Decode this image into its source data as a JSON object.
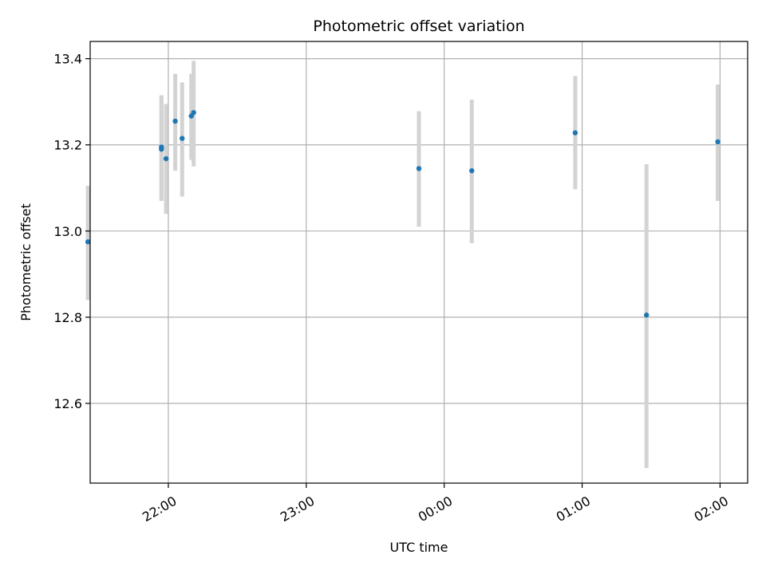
{
  "chart_data": {
    "type": "scatter",
    "title": "Photometric offset variation",
    "xlabel": "UTC time",
    "ylabel": "Photometric offset",
    "x_axis": {
      "kind": "time",
      "tick_labels": [
        "22:00",
        "23:00",
        "00:00",
        "01:00",
        "02:00"
      ],
      "tick_times": [
        "22:00",
        "23:00",
        "00:00",
        "01:00",
        "02:00"
      ],
      "range": [
        "21:26",
        "02:12"
      ]
    },
    "y_axis": {
      "tick_labels": [
        "12.6",
        "12.8",
        "13.0",
        "13.2",
        "13.4"
      ],
      "ticks": [
        12.6,
        12.8,
        13.0,
        13.2,
        13.4
      ],
      "range": [
        12.415,
        13.44
      ]
    },
    "grid": true,
    "colors": {
      "point": "#1f77b4",
      "errorbar": "#d3d3d3",
      "grid": "#b0b0b0"
    },
    "points": [
      {
        "x": "21:25",
        "y": 12.975,
        "lo": 12.84,
        "hi": 13.105
      },
      {
        "x": "21:57",
        "y": 13.195,
        "lo": 13.075,
        "hi": 13.315
      },
      {
        "x": "21:57",
        "y": 13.19,
        "lo": 13.07,
        "hi": 13.31
      },
      {
        "x": "21:59",
        "y": 13.168,
        "lo": 13.04,
        "hi": 13.295
      },
      {
        "x": "22:03",
        "y": 13.255,
        "lo": 13.14,
        "hi": 13.365
      },
      {
        "x": "22:06",
        "y": 13.215,
        "lo": 13.08,
        "hi": 13.345
      },
      {
        "x": "22:10",
        "y": 13.267,
        "lo": 13.165,
        "hi": 13.365
      },
      {
        "x": "22:11",
        "y": 13.275,
        "lo": 13.15,
        "hi": 13.395
      },
      {
        "x": "23:49",
        "y": 13.145,
        "lo": 13.01,
        "hi": 13.278
      },
      {
        "x": "00:12",
        "y": 13.14,
        "lo": 12.972,
        "hi": 13.305
      },
      {
        "x": "00:57",
        "y": 13.228,
        "lo": 13.097,
        "hi": 13.36
      },
      {
        "x": "01:28",
        "y": 12.805,
        "lo": 12.45,
        "hi": 13.155
      },
      {
        "x": "01:59",
        "y": 13.207,
        "lo": 13.07,
        "hi": 13.34
      }
    ]
  }
}
